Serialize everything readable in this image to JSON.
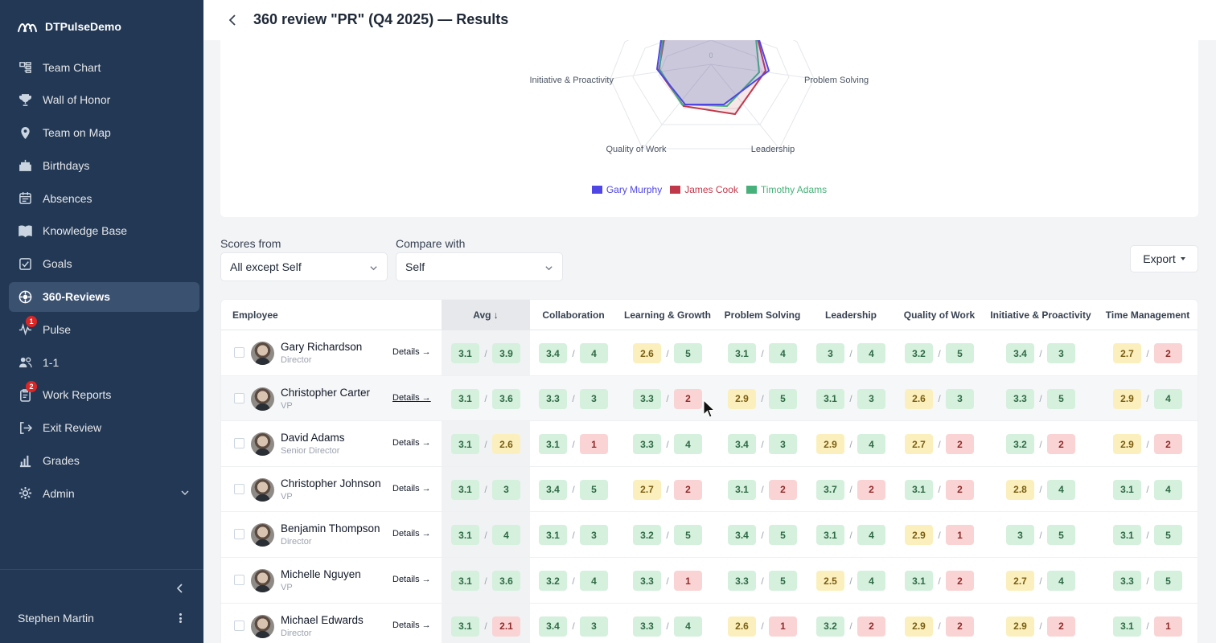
{
  "app": {
    "brand": "DTPulseDemo",
    "user_name": "Stephen Martin"
  },
  "sidebar": {
    "items": [
      {
        "label": "Team Chart",
        "icon": "org-chart-icon",
        "active": false,
        "badge": ""
      },
      {
        "label": "Wall of Honor",
        "icon": "trophy-icon",
        "active": false,
        "badge": ""
      },
      {
        "label": "Team on Map",
        "icon": "map-pin-icon",
        "active": false,
        "badge": ""
      },
      {
        "label": "Birthdays",
        "icon": "cake-icon",
        "active": false,
        "badge": ""
      },
      {
        "label": "Absences",
        "icon": "calendar-icon",
        "active": false,
        "badge": ""
      },
      {
        "label": "Knowledge Base",
        "icon": "book-icon",
        "active": false,
        "badge": ""
      },
      {
        "label": "Goals",
        "icon": "checkbox-icon",
        "active": false,
        "badge": ""
      },
      {
        "label": "360-Reviews",
        "icon": "reviews-icon",
        "active": true,
        "badge": ""
      },
      {
        "label": "Pulse",
        "icon": "pulse-icon",
        "active": false,
        "badge": "1"
      },
      {
        "label": "1-1",
        "icon": "users-icon",
        "active": false,
        "badge": ""
      },
      {
        "label": "Work Reports",
        "icon": "clipboard-icon",
        "active": false,
        "badge": "2"
      },
      {
        "label": "Exit Review",
        "icon": "exit-icon",
        "active": false,
        "badge": ""
      },
      {
        "label": "Grades",
        "icon": "bar-chart-icon",
        "active": false,
        "badge": ""
      },
      {
        "label": "Admin",
        "icon": "gear-icon",
        "active": false,
        "badge": ""
      }
    ]
  },
  "header": {
    "title": "360 review \"PR\" (Q4 2025) — Results"
  },
  "radar": {
    "axis_labels": [
      "Initiative & Proactivity",
      "Problem Solving",
      "Quality of Work",
      "Leadership"
    ],
    "center_tick": "0",
    "legend": [
      {
        "name": "Gary Murphy",
        "color": "#4f46e5"
      },
      {
        "name": "James Cook",
        "color": "#c0394b"
      },
      {
        "name": "Timothy Adams",
        "color": "#48b07a"
      }
    ]
  },
  "filters": {
    "scores_from_label": "Scores from",
    "scores_from_value": "All except Self",
    "compare_with_label": "Compare with",
    "compare_with_value": "Self",
    "export_label": "Export"
  },
  "table": {
    "employee_header": "Employee",
    "avg_header": "Avg ↓",
    "columns": [
      "Collaboration",
      "Learning & Growth",
      "Problem Solving",
      "Leadership",
      "Quality of Work",
      "Initiative & Proactivity",
      "Time Management"
    ],
    "details_label": "Details →",
    "rows": [
      {
        "name": "Gary Richardson",
        "role": "Director",
        "avg": [
          "3.1",
          "3.9"
        ],
        "scores": [
          [
            "3.4",
            "4"
          ],
          [
            "2.6",
            "5"
          ],
          [
            "3.1",
            "4"
          ],
          [
            "3",
            "4"
          ],
          [
            "3.2",
            "5"
          ],
          [
            "3.4",
            "3"
          ],
          [
            "2.7",
            "2"
          ]
        ]
      },
      {
        "name": "Christopher Carter",
        "role": "VP",
        "avg": [
          "3.1",
          "3.6"
        ],
        "scores": [
          [
            "3.3",
            "3"
          ],
          [
            "3.3",
            "2"
          ],
          [
            "2.9",
            "5"
          ],
          [
            "3.1",
            "3"
          ],
          [
            "2.6",
            "3"
          ],
          [
            "3.3",
            "5"
          ],
          [
            "2.9",
            "4"
          ]
        ]
      },
      {
        "name": "David Adams",
        "role": "Senior Director",
        "avg": [
          "3.1",
          "2.6"
        ],
        "scores": [
          [
            "3.1",
            "1"
          ],
          [
            "3.3",
            "4"
          ],
          [
            "3.4",
            "3"
          ],
          [
            "2.9",
            "4"
          ],
          [
            "2.7",
            "2"
          ],
          [
            "3.2",
            "2"
          ],
          [
            "2.9",
            "2"
          ]
        ]
      },
      {
        "name": "Christopher Johnson",
        "role": "VP",
        "avg": [
          "3.1",
          "3"
        ],
        "scores": [
          [
            "3.4",
            "5"
          ],
          [
            "2.7",
            "2"
          ],
          [
            "3.1",
            "2"
          ],
          [
            "3.7",
            "2"
          ],
          [
            "3.1",
            "2"
          ],
          [
            "2.8",
            "4"
          ],
          [
            "3.1",
            "4"
          ]
        ]
      },
      {
        "name": "Benjamin Thompson",
        "role": "Director",
        "avg": [
          "3.1",
          "4"
        ],
        "scores": [
          [
            "3.1",
            "3"
          ],
          [
            "3.2",
            "5"
          ],
          [
            "3.4",
            "5"
          ],
          [
            "3.1",
            "4"
          ],
          [
            "2.9",
            "1"
          ],
          [
            "3",
            "5"
          ],
          [
            "3.1",
            "5"
          ]
        ]
      },
      {
        "name": "Michelle Nguyen",
        "role": "VP",
        "avg": [
          "3.1",
          "3.6"
        ],
        "scores": [
          [
            "3.2",
            "4"
          ],
          [
            "3.3",
            "1"
          ],
          [
            "3.3",
            "5"
          ],
          [
            "2.5",
            "4"
          ],
          [
            "3.1",
            "2"
          ],
          [
            "2.7",
            "4"
          ],
          [
            "3.3",
            "5"
          ]
        ]
      },
      {
        "name": "Michael Edwards",
        "role": "Director",
        "avg": [
          "3.1",
          "2.1"
        ],
        "scores": [
          [
            "3.4",
            "3"
          ],
          [
            "3.3",
            "4"
          ],
          [
            "2.6",
            "1"
          ],
          [
            "3.2",
            "2"
          ],
          [
            "2.9",
            "2"
          ],
          [
            "2.9",
            "2"
          ],
          [
            "3.1",
            "1"
          ]
        ]
      }
    ]
  },
  "colors": {
    "sidebar_bg": "#233854",
    "chip_good": "#d5f0dd",
    "chip_mid": "#fbf0bd",
    "chip_bad": "#fad4d4"
  }
}
